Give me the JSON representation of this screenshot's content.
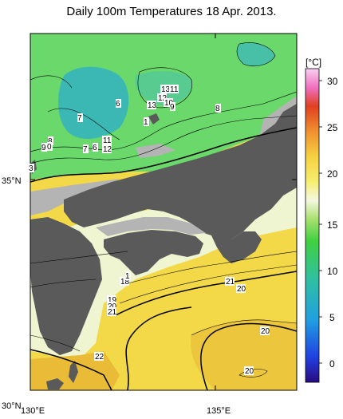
{
  "title": "Daily 100m Temperatures 18 Apr. 2013.",
  "axes": {
    "lat_labels": [
      "35°N",
      "30°N"
    ],
    "lon_labels": [
      "130°E",
      "135°E"
    ]
  },
  "colorbar": {
    "unit": "[°C]",
    "ticks": [
      "30",
      "25",
      "20",
      "15",
      "10",
      "5",
      "0"
    ],
    "min": -2,
    "max": 32
  },
  "contour_labels": [
    "13",
    "11",
    "12",
    "10",
    "9",
    "8",
    "6",
    "13",
    "7",
    "1",
    "11",
    "7",
    "6",
    "12",
    "8",
    "9",
    "0",
    "3",
    "18",
    "1",
    "21",
    "20",
    "19",
    "20",
    "21",
    "20",
    "22",
    "20"
  ],
  "colors": {
    "land": "#5a5a5a",
    "no_data": "#b4b4b4",
    "sea_cold": "#3fb8b8",
    "sea_cool": "#66d466",
    "sea_mild": "#e8f4c8",
    "sea_warm": "#f0d440",
    "sea_hot": "#e8b830"
  }
}
